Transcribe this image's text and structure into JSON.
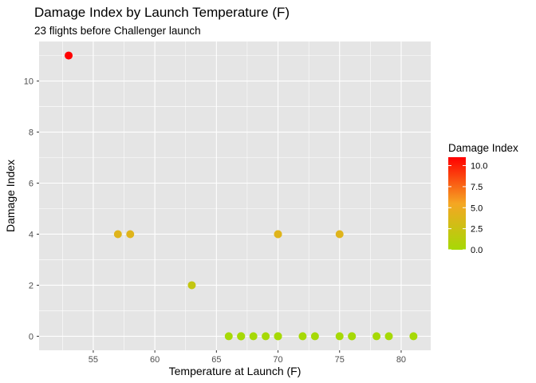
{
  "chart_data": {
    "type": "scatter",
    "title": "Damage Index by Launch Temperature (F)",
    "subtitle": "23 flights before Challenger launch",
    "xlabel": "Temperature at Launch (F)",
    "ylabel": "Damage Index",
    "xlim": [
      50.6,
      82.4
    ],
    "ylim": [
      -0.55,
      11.55
    ],
    "x_ticks": [
      55,
      60,
      65,
      70,
      75,
      80
    ],
    "y_ticks": [
      0,
      2,
      4,
      6,
      8,
      10
    ],
    "grid": true,
    "legend": {
      "title": "Damage Index",
      "position": "right",
      "labels": [
        "10.0",
        "7.5",
        "5.0",
        "2.5",
        "0.0"
      ],
      "values": [
        10,
        7.5,
        5,
        2.5,
        0
      ],
      "min": 0,
      "max": 11
    },
    "colors": {
      "panel": "#e5e5e5",
      "grid_major": "#ffffff",
      "low": "#a6d906",
      "mid": "#f5a623",
      "high": "#ff0000"
    },
    "points": [
      {
        "x": 53,
        "y": 11
      },
      {
        "x": 57,
        "y": 4
      },
      {
        "x": 58,
        "y": 4
      },
      {
        "x": 63,
        "y": 2
      },
      {
        "x": 66,
        "y": 0
      },
      {
        "x": 67,
        "y": 0
      },
      {
        "x": 67,
        "y": 0
      },
      {
        "x": 67,
        "y": 0
      },
      {
        "x": 68,
        "y": 0
      },
      {
        "x": 69,
        "y": 0
      },
      {
        "x": 70,
        "y": 4
      },
      {
        "x": 70,
        "y": 4
      },
      {
        "x": 70,
        "y": 0
      },
      {
        "x": 70,
        "y": 0
      },
      {
        "x": 72,
        "y": 0
      },
      {
        "x": 73,
        "y": 0
      },
      {
        "x": 75,
        "y": 4
      },
      {
        "x": 75,
        "y": 0
      },
      {
        "x": 76,
        "y": 0
      },
      {
        "x": 76,
        "y": 0
      },
      {
        "x": 78,
        "y": 0
      },
      {
        "x": 79,
        "y": 0
      },
      {
        "x": 81,
        "y": 0
      }
    ]
  }
}
